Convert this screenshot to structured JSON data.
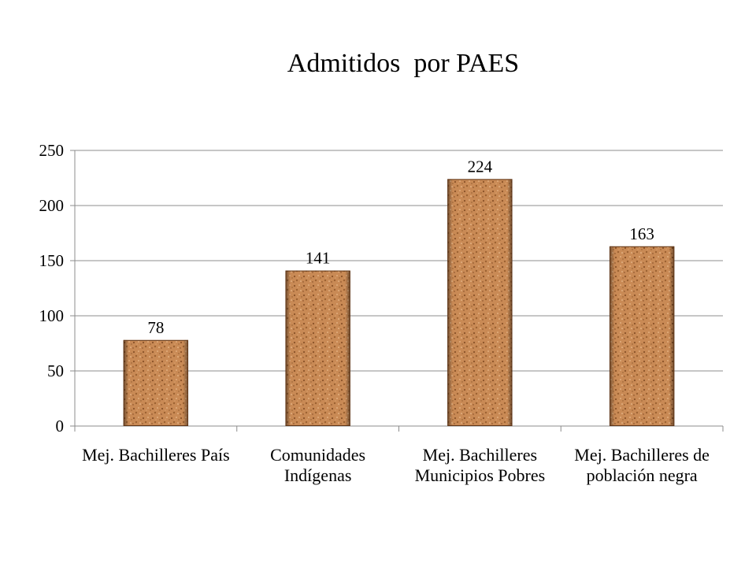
{
  "chart_data": {
    "type": "bar",
    "title": "Admitidos  por PAES",
    "categories": [
      [
        "Mej. Bachilleres País"
      ],
      [
        "Comunidades",
        "Indígenas"
      ],
      [
        "Mej. Bachilleres",
        "Municipios Pobres"
      ],
      [
        "Mej. Bachilleres de",
        "población negra"
      ]
    ],
    "values": [
      78,
      141,
      224,
      163
    ],
    "data_labels": [
      "78",
      "141",
      "224",
      "163"
    ],
    "ylim": [
      0,
      250
    ],
    "yticks": [
      0,
      50,
      100,
      150,
      200,
      250
    ],
    "grid": true,
    "legend": "none",
    "xlabel": "",
    "ylabel": "",
    "bar_color": "#c98a55",
    "bar_texture": "cork"
  }
}
